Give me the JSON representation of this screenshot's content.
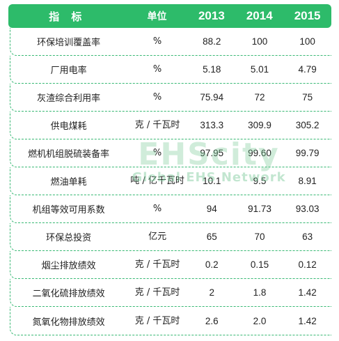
{
  "header": {
    "indicator": "指 标",
    "unit": "单位",
    "y2013": "2013",
    "y2014": "2014",
    "y2015": "2015"
  },
  "rows": [
    {
      "indicator": "环保培训覆盖率",
      "unit": "%",
      "v2013": "88.2",
      "v2014": "100",
      "v2015": "100"
    },
    {
      "indicator": "厂用电率",
      "unit": "%",
      "v2013": "5.18",
      "v2014": "5.01",
      "v2015": "4.79"
    },
    {
      "indicator": "灰渣综合利用率",
      "unit": "%",
      "v2013": "75.94",
      "v2014": "72",
      "v2015": "75"
    },
    {
      "indicator": "供电煤耗",
      "unit": "克 / 千瓦时",
      "v2013": "313.3",
      "v2014": "309.9",
      "v2015": "305.2"
    },
    {
      "indicator": "燃机机组脱硫装备率",
      "unit": "%",
      "v2013": "97.95",
      "v2014": "99.60",
      "v2015": "99.79"
    },
    {
      "indicator": "燃油单耗",
      "unit": "吨 / 亿千瓦时",
      "v2013": "10.1",
      "v2014": "9.5",
      "v2015": "8.91"
    },
    {
      "indicator": "机组等效可用系数",
      "unit": "%",
      "v2013": "94",
      "v2014": "91.73",
      "v2015": "93.03"
    },
    {
      "indicator": "环保总投资",
      "unit": "亿元",
      "v2013": "65",
      "v2014": "70",
      "v2015": "63"
    },
    {
      "indicator": "烟尘排放绩效",
      "unit": "克 / 千瓦时",
      "v2013": "0.2",
      "v2014": "0.15",
      "v2015": "0.12"
    },
    {
      "indicator": "二氧化硫排放绩效",
      "unit": "克 / 千瓦时",
      "v2013": "2",
      "v2014": "1.8",
      "v2015": "1.42"
    },
    {
      "indicator": "氮氧化物排放绩效",
      "unit": "克 / 千瓦时",
      "v2013": "2.6",
      "v2014": "2.0",
      "v2015": "1.42"
    }
  ],
  "watermark": {
    "brand": "EHScity",
    "tagline": "Global EHS Network"
  },
  "colors": {
    "header_bg": "#2dbb6a",
    "divider": "#37b873"
  }
}
